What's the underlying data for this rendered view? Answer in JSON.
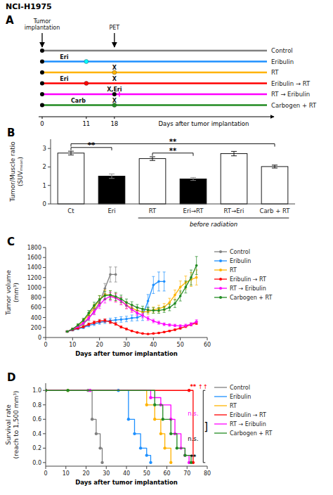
{
  "chart_data": [
    {
      "type": "timeline",
      "title": "NCI-H1975",
      "panel_label": "A",
      "categories": [
        "Control",
        "Eribulin",
        "RT",
        "Eribulin → RT",
        "RT → Eribulin",
        "Carbogen + RT"
      ],
      "colors": [
        "#808080",
        "#1E90FF",
        "#FFB300",
        "#FF0000",
        "#FF00FF",
        "#228B22"
      ],
      "xlabel": "Days after tumor implantation",
      "xlim": [
        0,
        56
      ],
      "xticks": [
        0,
        11,
        18
      ],
      "events": [
        {
          "row": 0,
          "x": 0,
          "color": "black"
        },
        {
          "row": 1,
          "x": 0,
          "color": "black"
        },
        {
          "row": 2,
          "x": 0,
          "color": "black"
        },
        {
          "row": 3,
          "x": 0,
          "color": "black"
        },
        {
          "row": 4,
          "x": 0,
          "color": "black"
        },
        {
          "row": 5,
          "x": 0,
          "color": "black"
        },
        {
          "row": 1,
          "x": 11,
          "color": "cyan"
        },
        {
          "row": 2,
          "x": 18,
          "color": "#FFB300"
        },
        {
          "row": 3,
          "x": 11,
          "color": "red"
        },
        {
          "row": 4,
          "x": 18,
          "color": "black"
        },
        {
          "row": 4,
          "x": 18,
          "color": "magenta",
          "marker": "plus"
        },
        {
          "row": 5,
          "x": 18,
          "color": "#228B22"
        }
      ],
      "annotations": [
        {
          "text": "Tumor\nimplantation",
          "x": 0
        },
        {
          "text": "PET",
          "x": 18
        },
        {
          "text": "Eri",
          "x": 5.5,
          "row": 1
        },
        {
          "text": "X",
          "x": 18,
          "row": 2
        },
        {
          "text": "Eri",
          "x": 5.5,
          "row": 3
        },
        {
          "text": "X",
          "x": 18,
          "row": 3
        },
        {
          "text": "X,Eri",
          "x": 18,
          "row": 4
        },
        {
          "text": "X",
          "x": 18,
          "row": 5
        },
        {
          "text": "Carb",
          "x": 9,
          "row": 5
        }
      ]
    },
    {
      "type": "bar",
      "panel_label": "B",
      "categories": [
        "Ct",
        "Eri",
        "RT",
        "Eri→RT",
        "RT→Eri",
        "Carb + RT"
      ],
      "values": [
        2.75,
        1.5,
        2.45,
        1.35,
        2.72,
        2.02
      ],
      "errors": [
        0.1,
        0.12,
        0.1,
        0.08,
        0.12,
        0.08
      ],
      "colors": [
        "white",
        "black",
        "white",
        "black",
        "white",
        "white"
      ],
      "ylabel": "Tumor/Muscle ratio\n(SUVₘₑₐₙ)",
      "ylim": [
        0,
        3.5
      ],
      "yticks": [
        0,
        1,
        2,
        3
      ],
      "subtitle": "before radiation",
      "annotations": [
        {
          "text": "**",
          "from": 0,
          "to": 1,
          "y": 2.9
        },
        {
          "text": "**",
          "from": 2,
          "to": 3,
          "y": 2.6
        },
        {
          "text": "**",
          "from": 0,
          "to": 5,
          "y": 3.1
        }
      ]
    },
    {
      "type": "line",
      "panel_label": "C",
      "marker": "circle",
      "legend": "right",
      "ylabel": "Tumor volume\n(mm³)",
      "xlabel": "Days after tumor implantation",
      "xlim": [
        0,
        60
      ],
      "ylim": [
        0,
        1800
      ],
      "xticks": [
        0,
        10,
        20,
        30,
        40,
        50,
        60
      ],
      "yticks": [
        0,
        200,
        400,
        600,
        800,
        1000,
        1200,
        1400,
        1600,
        1800
      ],
      "series": [
        {
          "name": "Control",
          "color": "#808080",
          "x": [
            8,
            10,
            12,
            14,
            16,
            18,
            20,
            22,
            24,
            26
          ],
          "values": [
            120,
            150,
            200,
            270,
            380,
            530,
            700,
            980,
            1260,
            1260
          ],
          "errors": [
            15,
            18,
            22,
            30,
            45,
            60,
            80,
            100,
            150,
            150
          ]
        },
        {
          "name": "Eribulin",
          "color": "#1E90FF",
          "x": [
            8,
            10,
            12,
            14,
            16,
            18,
            20,
            22,
            24,
            26,
            28,
            30,
            32,
            34,
            36,
            38,
            40,
            42,
            44
          ],
          "values": [
            120,
            150,
            175,
            200,
            240,
            270,
            300,
            320,
            340,
            350,
            360,
            370,
            390,
            400,
            440,
            730,
            1050,
            1120,
            1120
          ],
          "errors": [
            12,
            15,
            18,
            22,
            26,
            30,
            35,
            40,
            45,
            50,
            55,
            55,
            60,
            65,
            100,
            130,
            170,
            190,
            190
          ]
        },
        {
          "name": "RT",
          "color": "#FFB300",
          "x": [
            8,
            10,
            12,
            14,
            16,
            18,
            20,
            22,
            24,
            26,
            28,
            30,
            32,
            34,
            36,
            38,
            40,
            42,
            44,
            46,
            48,
            50,
            52,
            54,
            56
          ],
          "values": [
            120,
            170,
            240,
            330,
            450,
            600,
            760,
            860,
            850,
            800,
            730,
            650,
            590,
            540,
            510,
            520,
            550,
            580,
            610,
            700,
            850,
            1010,
            1100,
            1160,
            1200
          ],
          "errors": [
            12,
            17,
            25,
            35,
            50,
            65,
            80,
            90,
            88,
            82,
            75,
            68,
            62,
            57,
            55,
            57,
            60,
            65,
            70,
            85,
            100,
            120,
            130,
            140,
            150
          ]
        },
        {
          "name": "Eribulin → RT",
          "color": "#FF0000",
          "x": [
            8,
            10,
            12,
            14,
            16,
            18,
            20,
            22,
            24,
            26,
            28,
            30,
            32,
            34,
            36,
            38,
            40,
            42,
            44,
            46,
            48,
            50,
            52,
            54,
            56
          ],
          "values": [
            120,
            155,
            185,
            215,
            265,
            300,
            330,
            340,
            310,
            270,
            210,
            170,
            130,
            100,
            80,
            70,
            80,
            90,
            110,
            130,
            155,
            185,
            220,
            260,
            290
          ],
          "errors": [
            12,
            14,
            17,
            20,
            25,
            28,
            32,
            33,
            30,
            26,
            20,
            16,
            12,
            9,
            8,
            8,
            9,
            10,
            12,
            14,
            16,
            18,
            22,
            26,
            30
          ]
        },
        {
          "name": "RT → Eribulin",
          "color": "#FF00FF",
          "x": [
            8,
            10,
            12,
            14,
            16,
            18,
            20,
            22,
            24,
            26,
            28,
            30,
            32,
            34,
            36,
            38,
            40,
            42,
            44,
            46,
            48,
            50,
            52,
            54,
            56
          ],
          "values": [
            120,
            165,
            220,
            295,
            390,
            510,
            650,
            770,
            820,
            790,
            730,
            640,
            560,
            490,
            440,
            380,
            330,
            295,
            265,
            250,
            240,
            230,
            240,
            265,
            320
          ],
          "errors": [
            12,
            16,
            22,
            30,
            40,
            55,
            70,
            80,
            85,
            82,
            76,
            66,
            58,
            50,
            45,
            40,
            35,
            30,
            27,
            25,
            25,
            25,
            27,
            30,
            35
          ]
        },
        {
          "name": "Carbogen + RT",
          "color": "#228B22",
          "x": [
            8,
            10,
            12,
            14,
            16,
            18,
            20,
            22,
            24,
            26,
            28,
            30,
            32,
            34,
            36,
            38,
            40,
            42,
            44,
            46,
            48,
            50,
            52,
            54,
            56
          ],
          "values": [
            120,
            170,
            250,
            350,
            490,
            640,
            760,
            840,
            850,
            820,
            770,
            700,
            650,
            600,
            570,
            550,
            540,
            540,
            560,
            600,
            680,
            830,
            1010,
            1200,
            1440
          ],
          "errors": [
            12,
            17,
            25,
            35,
            50,
            65,
            76,
            84,
            85,
            82,
            77,
            70,
            65,
            60,
            57,
            56,
            55,
            55,
            58,
            65,
            80,
            100,
            120,
            150,
            180
          ]
        }
      ]
    },
    {
      "type": "step",
      "panel_label": "D",
      "marker": "circle",
      "legend": "right",
      "ylabel": "Survival rate\n(reach to 1,500 mm³)",
      "xlabel": "Days after tumor implantation",
      "xlim": [
        0,
        80
      ],
      "ylim": [
        -0.05,
        1.1
      ],
      "xticks": [
        0,
        10,
        20,
        30,
        40,
        50,
        60,
        70,
        80
      ],
      "yticks": [
        {
          "value": 0.0,
          "label": "0.0"
        },
        0.2,
        0.4,
        0.6,
        0.8,
        {
          "value": 1.0,
          "label": "1.0"
        }
      ],
      "series": [
        {
          "name": "Control",
          "color": "#808080",
          "x": [
            0,
            21,
            23,
            25,
            27,
            28
          ],
          "values": [
            1.0,
            1.0,
            0.6,
            0.4,
            0.2,
            0.0
          ]
        },
        {
          "name": "Eribulin",
          "color": "#1E90FF",
          "x": [
            0,
            36,
            41,
            44,
            47,
            50,
            52
          ],
          "values": [
            1.0,
            1.0,
            0.6,
            0.4,
            0.2,
            0.1,
            0.0
          ]
        },
        {
          "name": "RT",
          "color": "#FFB300",
          "x": [
            0,
            11,
            50,
            54,
            57,
            59,
            62
          ],
          "values": [
            1.0,
            1.0,
            0.8,
            0.6,
            0.4,
            0.2,
            0.0
          ]
        },
        {
          "name": "Eribulin → RT",
          "color": "#FF0000",
          "x": [
            0,
            71,
            73
          ],
          "values": [
            1.0,
            1.0,
            0.0
          ]
        },
        {
          "name": "RT → Eribulin",
          "color": "#FF00FF",
          "x": [
            0,
            22,
            52,
            57,
            62,
            64,
            67,
            69,
            71
          ],
          "values": [
            1.0,
            1.0,
            0.9,
            0.8,
            0.6,
            0.4,
            0.2,
            0.1,
            0.0
          ]
        },
        {
          "name": "Carbogen + RT",
          "color": "#228B22",
          "x": [
            0,
            11,
            54,
            58,
            62,
            65,
            69,
            72
          ],
          "values": [
            1.0,
            1.0,
            0.8,
            0.6,
            0.4,
            0.2,
            0.1,
            0.0
          ]
        }
      ],
      "annotations": [
        {
          "text": "**",
          "x": 73,
          "y": 1.02,
          "color": "red"
        },
        {
          "text": "↑↑",
          "x": 75,
          "y": 1.02,
          "color": "red",
          "align": "left"
        },
        {
          "text": "n.s.",
          "x": 73,
          "y": 0.65,
          "color": "#FF00FF"
        },
        {
          "text": "n.s.",
          "x": 73,
          "y": 0.3,
          "color": "black"
        },
        {
          "text": "**",
          "x": 73,
          "y": 0.05,
          "color": "black"
        },
        {
          "text": "]",
          "x": 78,
          "y": 0.5,
          "color": "black",
          "align": "left"
        }
      ],
      "bracket": {
        "x": 78,
        "y": [
          0.0,
          1.0
        ]
      }
    }
  ]
}
